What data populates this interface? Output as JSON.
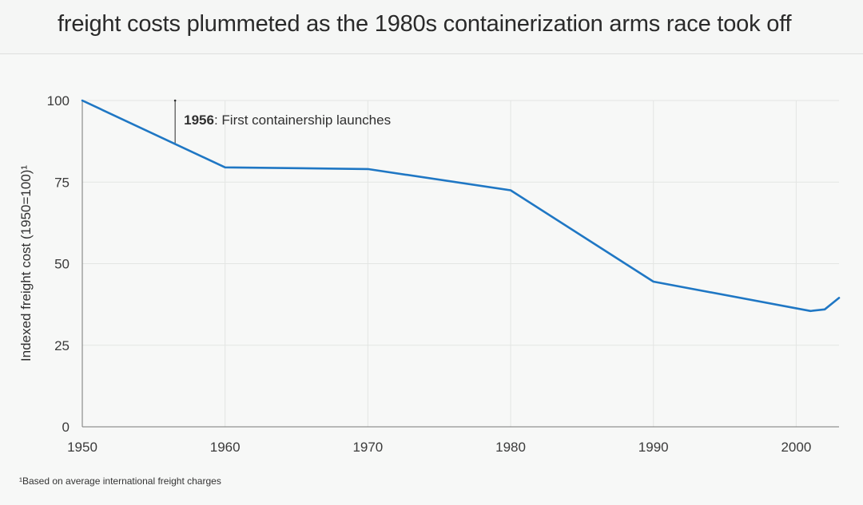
{
  "colors": {
    "background": "#f7f8f7",
    "series_line": "#1f77c4",
    "gridline": "#e3e5e3",
    "axis_line": "#777777",
    "text": "#2a2a2a"
  },
  "footnote": "¹Based on average international freight charges",
  "chart_data": {
    "type": "line",
    "title": "freight costs plummeted as the 1980s containerization arms race took off",
    "xlabel": "",
    "ylabel": "Indexed freight cost (1950=100)¹",
    "xlim": [
      1950,
      2003
    ],
    "ylim": [
      0,
      100
    ],
    "x_ticks": [
      1950,
      1960,
      1970,
      1980,
      1990,
      2000
    ],
    "y_ticks": [
      0,
      25,
      50,
      75,
      100
    ],
    "grid": true,
    "series": [
      {
        "name": "Indexed freight cost",
        "x": [
          1950,
          1960,
          1970,
          1980,
          1990,
          2001,
          2002,
          2003
        ],
        "values": [
          100,
          79.5,
          79,
          72.5,
          44.5,
          35.5,
          36,
          39.5
        ]
      }
    ],
    "annotations": [
      {
        "x": 1956.5,
        "bold": "1956",
        "text": ": First containership launches"
      }
    ]
  }
}
